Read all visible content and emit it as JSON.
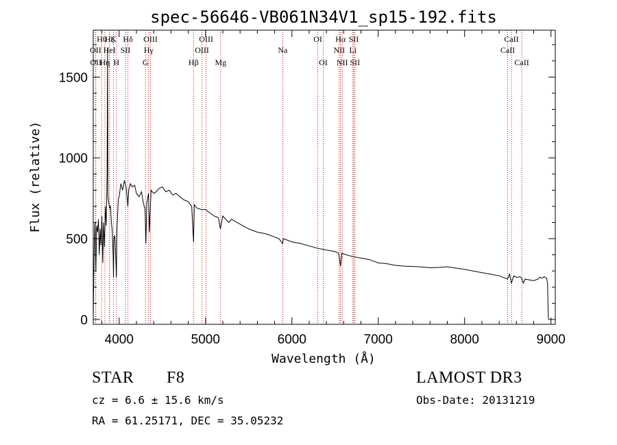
{
  "chart_data": {
    "type": "line",
    "title": "spec-56646-VB061N34V1_sp15-192.fits",
    "xlabel": "Wavelength (Å)",
    "ylabel": "Flux (relative)",
    "xlim": [
      3700,
      9050
    ],
    "ylim": [
      -30,
      1790
    ],
    "xticks": [
      4000,
      5000,
      6000,
      7000,
      8000,
      9000
    ],
    "yticks": [
      0,
      500,
      1000,
      1500
    ],
    "series": [
      {
        "name": "spectrum",
        "x": [
          3700,
          3710,
          3720,
          3730,
          3740,
          3750,
          3760,
          3770,
          3780,
          3790,
          3800,
          3810,
          3820,
          3830,
          3840,
          3850,
          3860,
          3866,
          3870,
          3880,
          3890,
          3900,
          3910,
          3920,
          3930,
          3934,
          3940,
          3950,
          3960,
          3968,
          3975,
          3990,
          4000,
          4020,
          4040,
          4060,
          4080,
          4101,
          4110,
          4130,
          4150,
          4180,
          4200,
          4230,
          4260,
          4280,
          4300,
          4310,
          4320,
          4340,
          4350,
          4370,
          4400,
          4430,
          4460,
          4500,
          4540,
          4580,
          4620,
          4660,
          4700,
          4750,
          4800,
          4840,
          4861,
          4870,
          4900,
          4950,
          5000,
          5050,
          5100,
          5150,
          5172,
          5200,
          5270,
          5300,
          5400,
          5500,
          5600,
          5700,
          5800,
          5850,
          5893,
          5900,
          5950,
          6000,
          6100,
          6200,
          6300,
          6400,
          6500,
          6540,
          6563,
          6580,
          6600,
          6700,
          6800,
          6900,
          7000,
          7100,
          7200,
          7300,
          7400,
          7500,
          7600,
          7700,
          7800,
          7900,
          8000,
          8100,
          8200,
          8300,
          8400,
          8498,
          8520,
          8542,
          8570,
          8600,
          8640,
          8662,
          8680,
          8700,
          8750,
          8800,
          8850,
          8870,
          8900,
          8920,
          8950,
          8960,
          8965,
          8970
        ],
        "values": [
          0,
          420,
          600,
          300,
          580,
          540,
          620,
          400,
          560,
          460,
          640,
          350,
          600,
          450,
          700,
          580,
          900,
          1680,
          760,
          720,
          690,
          700,
          600,
          550,
          400,
          260,
          500,
          520,
          390,
          260,
          560,
          740,
          760,
          840,
          800,
          860,
          820,
          700,
          800,
          840,
          820,
          830,
          780,
          760,
          790,
          720,
          680,
          470,
          720,
          780,
          540,
          800,
          780,
          790,
          810,
          820,
          790,
          800,
          770,
          780,
          760,
          740,
          730,
          700,
          480,
          710,
          690,
          680,
          680,
          660,
          640,
          630,
          560,
          640,
          600,
          620,
          590,
          560,
          540,
          530,
          510,
          500,
          470,
          500,
          490,
          480,
          470,
          455,
          440,
          430,
          420,
          410,
          330,
          410,
          405,
          390,
          380,
          370,
          350,
          345,
          335,
          330,
          328,
          325,
          320,
          322,
          326,
          318,
          310,
          300,
          290,
          280,
          270,
          250,
          280,
          225,
          270,
          260,
          265,
          255,
          225,
          250,
          245,
          240,
          250,
          262,
          255,
          265,
          255,
          225,
          100,
          0
        ]
      }
    ],
    "reference_lines": [
      {
        "label": "OII",
        "wavelength": 3727,
        "row": 2
      },
      {
        "label": "OII",
        "wavelength": 3729,
        "row": 3
      },
      {
        "label": "Hθ",
        "wavelength": 3798,
        "row": 1
      },
      {
        "label": "Hη",
        "wavelength": 3835,
        "row": 3
      },
      {
        "label": "HeI",
        "wavelength": 3889,
        "row": 2
      },
      {
        "label": "Hζ",
        "wavelength": 3889,
        "row": 1
      },
      {
        "label": "K",
        "wavelength": 3934,
        "row": 1
      },
      {
        "label": "H",
        "wavelength": 3968,
        "row": 3
      },
      {
        "label": "SII",
        "wavelength": 4072,
        "row": 2
      },
      {
        "label": "Hδ",
        "wavelength": 4102,
        "row": 1
      },
      {
        "label": "G",
        "wavelength": 4305,
        "row": 3
      },
      {
        "label": "Hγ",
        "wavelength": 4341,
        "row": 2
      },
      {
        "label": "OIII",
        "wavelength": 4363,
        "row": 1
      },
      {
        "label": "Hβ",
        "wavelength": 4861,
        "row": 3
      },
      {
        "label": "OIII",
        "wavelength": 4959,
        "row": 2
      },
      {
        "label": "OIII",
        "wavelength": 5007,
        "row": 1
      },
      {
        "label": "Mg",
        "wavelength": 5175,
        "row": 3
      },
      {
        "label": "Na",
        "wavelength": 5894,
        "row": 2
      },
      {
        "label": "OI",
        "wavelength": 6300,
        "row": 1
      },
      {
        "label": "OI",
        "wavelength": 6364,
        "row": 3
      },
      {
        "label": "NII",
        "wavelength": 6548,
        "row": 2
      },
      {
        "label": "Hα",
        "wavelength": 6563,
        "row": 1
      },
      {
        "label": "NII",
        "wavelength": 6583,
        "row": 3
      },
      {
        "label": "Li",
        "wavelength": 6707,
        "row": 2
      },
      {
        "label": "SII",
        "wavelength": 6716,
        "row": 1
      },
      {
        "label": "SII",
        "wavelength": 6731,
        "row": 3
      },
      {
        "label": "CaII",
        "wavelength": 8498,
        "row": 2
      },
      {
        "label": "CaII",
        "wavelength": 8542,
        "row": 1
      },
      {
        "label": "CaII",
        "wavelength": 8662,
        "row": 3
      }
    ],
    "line_color": "#000000",
    "reference_line_color": "#cc0000"
  },
  "info": {
    "class_label": "STAR",
    "subclass": "F8",
    "survey": "LAMOST DR3",
    "redshift_line": "cz = 6.6 ± 15.6 km/s",
    "obs_date_line": "Obs-Date: 20131219",
    "coords_line": "RA =  61.25171, DEC =  35.05232"
  }
}
